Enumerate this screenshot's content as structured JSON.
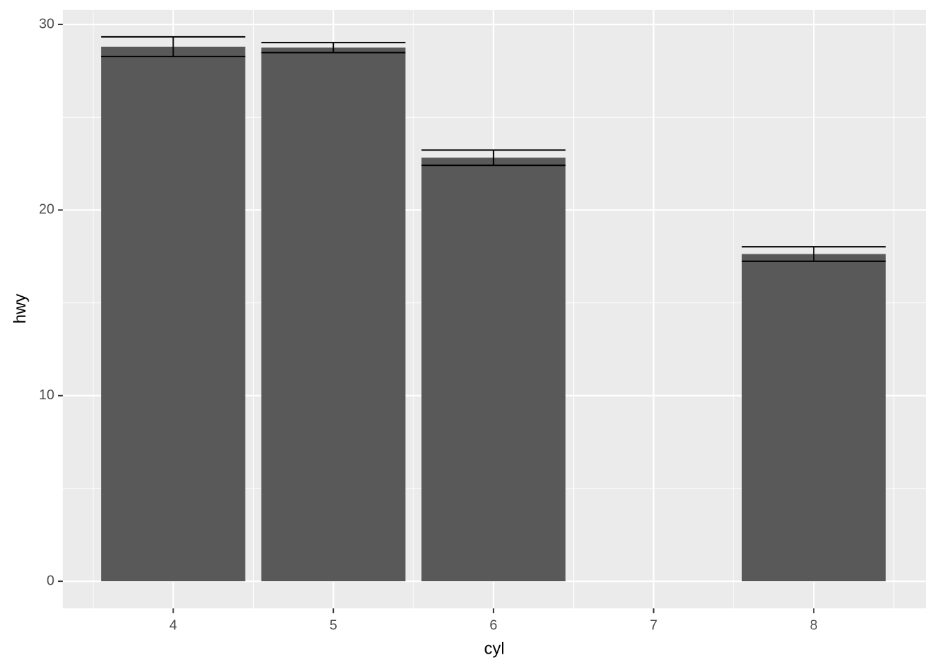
{
  "chart_data": {
    "type": "bar",
    "x_label": "cyl",
    "y_label": "hwy",
    "x": [
      4,
      5,
      6,
      8
    ],
    "values": [
      28.8,
      28.75,
      22.82,
      17.63
    ],
    "errors": [
      0.53,
      0.27,
      0.41,
      0.39
    ],
    "bar_width": 0.9,
    "color": "#595959",
    "error_color": "#000000",
    "xlim": [
      3.31,
      8.7
    ],
    "xticks": [
      4,
      5,
      6,
      7,
      8
    ],
    "ylim": [
      -1.46,
      30.79
    ],
    "yticks": [
      0,
      10,
      20,
      30
    ],
    "grid": true,
    "minor_grid": true
  }
}
